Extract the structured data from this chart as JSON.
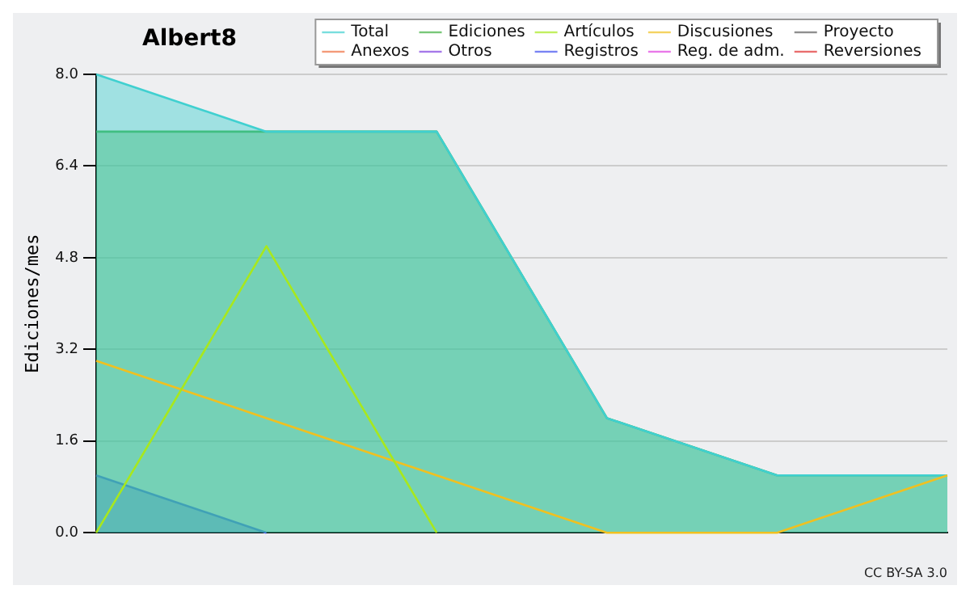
{
  "chart_data": {
    "type": "line",
    "title": "Albert8",
    "ylabel": "Ediciones/mes",
    "categories": [
      null,
      null,
      null,
      null,
      null,
      null
    ],
    "series": [
      {
        "name": "Total",
        "type": "area",
        "color": "#40d0d0",
        "values": [
          8,
          7,
          7,
          2,
          1,
          1
        ]
      },
      {
        "name": "Ediciones",
        "type": "area",
        "color": "#40b040",
        "values": [
          7,
          7,
          7,
          2,
          1,
          1
        ]
      },
      {
        "name": "Artículos",
        "type": "line",
        "color": "#a8e81c",
        "values": [
          0,
          5,
          0,
          null,
          null,
          null
        ]
      },
      {
        "name": "Discusiones",
        "type": "line",
        "color": "#f0c020",
        "values": [
          3,
          2,
          1,
          0,
          0,
          1
        ]
      },
      {
        "name": "Proyecto",
        "type": "line",
        "color": "#606060",
        "values": [
          null,
          null,
          null,
          null,
          null,
          null
        ]
      },
      {
        "name": "Anexos",
        "type": "line",
        "color": "#f07040",
        "values": [
          null,
          null,
          null,
          null,
          null,
          null
        ]
      },
      {
        "name": "Otros",
        "type": "line",
        "color": "#8040e0",
        "values": [
          null,
          null,
          null,
          null,
          null,
          null
        ]
      },
      {
        "name": "Registros",
        "type": "area",
        "color": "#4050f0",
        "values": [
          1,
          0,
          null,
          null,
          null,
          null
        ]
      },
      {
        "name": "Reg. de adm.",
        "type": "line",
        "color": "#e040e0",
        "values": [
          null,
          null,
          null,
          null,
          null,
          null
        ]
      },
      {
        "name": "Reversiones",
        "type": "line",
        "color": "#e03030",
        "values": [
          null,
          null,
          null,
          null,
          null,
          null
        ]
      }
    ],
    "ylim": [
      0,
      8
    ],
    "yticks": [
      {
        "value": 0,
        "label": "0.0"
      },
      {
        "value": 1.6,
        "label": "1.6"
      },
      {
        "value": 3.2,
        "label": "3.2"
      },
      {
        "value": 4.8,
        "label": "4.8"
      },
      {
        "value": 6.4,
        "label": "6.4"
      },
      {
        "value": 8,
        "label": "8.0"
      }
    ],
    "grid": "y",
    "legend": "top right",
    "marker": "none",
    "line_style": "solid",
    "annotations": [
      "CC BY-SA 3.0"
    ]
  }
}
